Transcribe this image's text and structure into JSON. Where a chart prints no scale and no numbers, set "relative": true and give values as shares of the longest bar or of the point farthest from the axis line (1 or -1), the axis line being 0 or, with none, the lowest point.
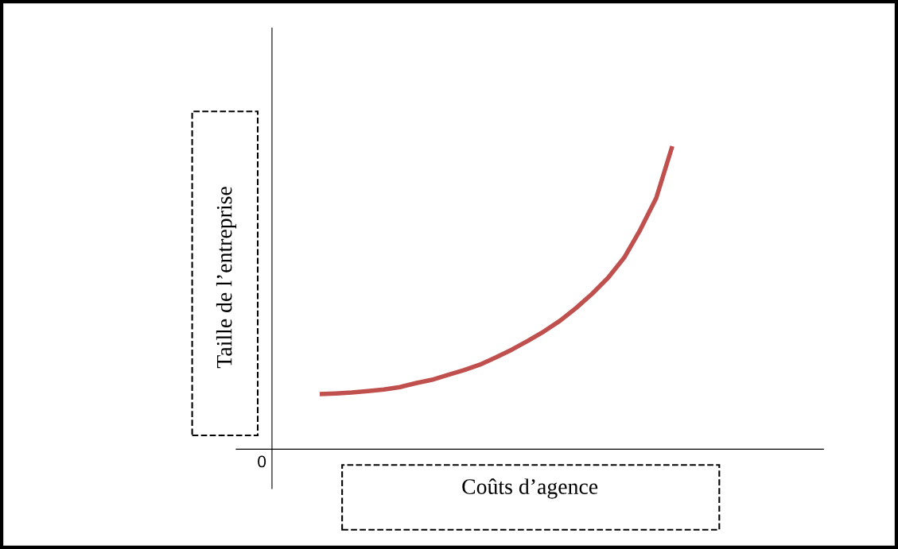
{
  "chart_data": {
    "type": "line",
    "relative": true,
    "xlabel": "Coûts d’agence",
    "ylabel": "Taille de l’entreprise",
    "categories": [
      null,
      null,
      null,
      null,
      null,
      null,
      null,
      null,
      null,
      null,
      null,
      null,
      null,
      null,
      null,
      null,
      null,
      null,
      null,
      null,
      null,
      null,
      null
    ],
    "series": [
      {
        "color": "#c0504d",
        "values": [
          0.182,
          0.184,
          0.187,
          0.192,
          0.197,
          0.205,
          0.218,
          0.229,
          0.245,
          0.261,
          0.279,
          0.303,
          0.329,
          0.358,
          0.389,
          0.424,
          0.466,
          0.513,
          0.566,
          0.632,
          0.724,
          0.829,
          1.0
        ]
      }
    ],
    "annotations": [
      "0"
    ],
    "marker": "none",
    "line_style": "solid"
  }
}
